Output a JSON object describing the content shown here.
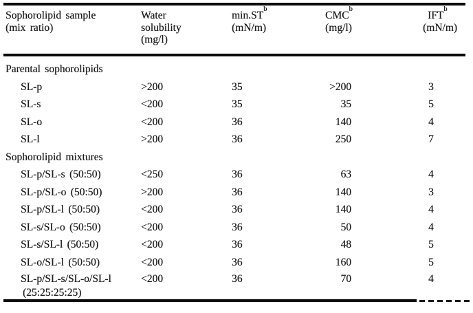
{
  "page": {
    "background_color": "#ffffff",
    "text_color": "#1f1f1f",
    "rule_color": "#0c0c0c"
  },
  "table": {
    "columns": [
      {
        "id": "sample",
        "header_lines": [
          "Sophorolipid sample",
          "(mix ratio)"
        ],
        "superscript": ""
      },
      {
        "id": "water_solubility",
        "header_lines": [
          "Water",
          "solubility",
          "(mg/l)"
        ],
        "superscript": ""
      },
      {
        "id": "min_st",
        "header_main": "min.ST",
        "superscript": "b",
        "header_unit": "(mN/m)"
      },
      {
        "id": "cmc",
        "header_main": "CMC",
        "superscript": "b",
        "header_unit": "(mg/l)"
      },
      {
        "id": "ift",
        "header_main": "IFT",
        "superscript": "b",
        "header_unit": "(mN/m)"
      }
    ],
    "sections": [
      {
        "header": "Parental sophorolipids",
        "rows": [
          {
            "sample": "SL-p",
            "water_solubility": ">200",
            "min_st": "35",
            "cmc": ">200",
            "ift": "3"
          },
          {
            "sample": "SL-s",
            "water_solubility": "<200",
            "min_st": "35",
            "cmc": "35",
            "ift": "5"
          },
          {
            "sample": "SL-o",
            "water_solubility": "<200",
            "min_st": "36",
            "cmc": "140",
            "ift": "4"
          },
          {
            "sample": "SL-l",
            "water_solubility": ">200",
            "min_st": "36",
            "cmc": "250",
            "ift": "7"
          }
        ]
      },
      {
        "header": "Sophorolipid mixtures",
        "rows": [
          {
            "sample": "SL-p/SL-s (50:50)",
            "water_solubility": "<250",
            "min_st": "36",
            "cmc": "63",
            "ift": "4"
          },
          {
            "sample": "SL-p/SL-o (50:50)",
            "water_solubility": ">200",
            "min_st": "36",
            "cmc": "140",
            "ift": "3"
          },
          {
            "sample": "SL-p/SL-l (50:50)",
            "water_solubility": "<200",
            "min_st": "36",
            "cmc": "140",
            "ift": "4"
          },
          {
            "sample": "SL-s/SL-o (50:50)",
            "water_solubility": "<200",
            "min_st": "36",
            "cmc": "50",
            "ift": "4"
          },
          {
            "sample": "SL-s/SL-l (50:50)",
            "water_solubility": "<200",
            "min_st": "36",
            "cmc": "48",
            "ift": "5"
          },
          {
            "sample": "SL-o/SL-l (50:50)",
            "water_solubility": "<200",
            "min_st": "36",
            "cmc": "160",
            "ift": "5"
          },
          {
            "sample": "SL-p/SL-s/SL-o/SL-l",
            "sample_line2": "(25:25:25:25)",
            "water_solubility": "<200",
            "min_st": "36",
            "cmc": "70",
            "ift": "4"
          }
        ]
      }
    ]
  }
}
